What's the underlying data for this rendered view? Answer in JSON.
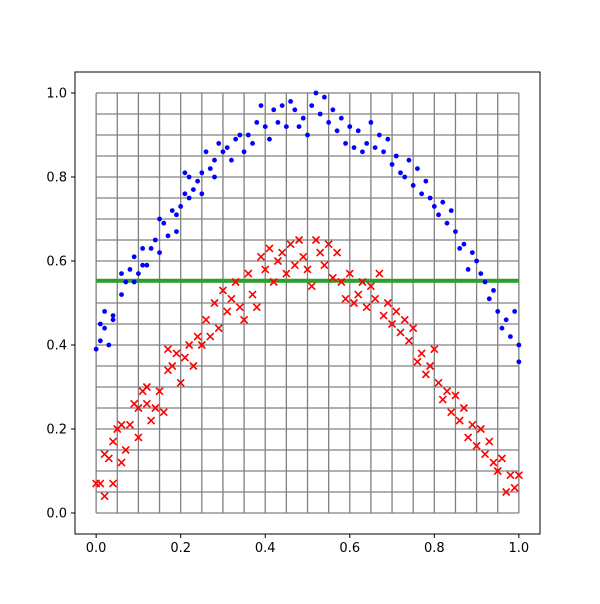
{
  "chart_data": {
    "type": "scatter",
    "title": "",
    "xlabel": "",
    "ylabel": "",
    "xlim": [
      -0.05,
      1.05
    ],
    "ylim": [
      -0.05,
      1.05
    ],
    "x_ticks": [
      0.0,
      0.2,
      0.4,
      0.6,
      0.8,
      1.0
    ],
    "x_tick_labels": [
      "0.0",
      "0.2",
      "0.4",
      "0.6",
      "0.8",
      "1.0"
    ],
    "y_ticks": [
      0.0,
      0.2,
      0.4,
      0.6,
      0.8,
      1.0
    ],
    "y_tick_labels": [
      "0.0",
      "0.2",
      "0.4",
      "0.6",
      "0.8",
      "1.0"
    ],
    "grid": {
      "on": true,
      "range": [
        0,
        1
      ],
      "step": 0.05,
      "color": "#808080"
    },
    "horizontal_line": {
      "y": 0.553,
      "color": "#2ca02c"
    },
    "colors": {
      "series_blue": "#0000ff",
      "series_red": "#ff0000"
    },
    "series": [
      {
        "marker": "dot",
        "color": "#0000ff",
        "points": [
          [
            0.0,
            0.39
          ],
          [
            0.01,
            0.45
          ],
          [
            0.01,
            0.41
          ],
          [
            0.02,
            0.44
          ],
          [
            0.02,
            0.48
          ],
          [
            0.03,
            0.4
          ],
          [
            0.04,
            0.46
          ],
          [
            0.04,
            0.47
          ],
          [
            0.06,
            0.52
          ],
          [
            0.06,
            0.57
          ],
          [
            0.07,
            0.55
          ],
          [
            0.08,
            0.58
          ],
          [
            0.09,
            0.55
          ],
          [
            0.09,
            0.61
          ],
          [
            0.1,
            0.57
          ],
          [
            0.11,
            0.63
          ],
          [
            0.11,
            0.59
          ],
          [
            0.12,
            0.59
          ],
          [
            0.13,
            0.63
          ],
          [
            0.14,
            0.65
          ],
          [
            0.15,
            0.62
          ],
          [
            0.15,
            0.7
          ],
          [
            0.16,
            0.69
          ],
          [
            0.17,
            0.66
          ],
          [
            0.18,
            0.72
          ],
          [
            0.19,
            0.67
          ],
          [
            0.19,
            0.71
          ],
          [
            0.2,
            0.73
          ],
          [
            0.21,
            0.76
          ],
          [
            0.21,
            0.81
          ],
          [
            0.22,
            0.8
          ],
          [
            0.22,
            0.75
          ],
          [
            0.23,
            0.77
          ],
          [
            0.24,
            0.79
          ],
          [
            0.25,
            0.76
          ],
          [
            0.25,
            0.81
          ],
          [
            0.26,
            0.86
          ],
          [
            0.27,
            0.82
          ],
          [
            0.28,
            0.84
          ],
          [
            0.28,
            0.8
          ],
          [
            0.29,
            0.88
          ],
          [
            0.3,
            0.86
          ],
          [
            0.31,
            0.87
          ],
          [
            0.32,
            0.84
          ],
          [
            0.33,
            0.89
          ],
          [
            0.34,
            0.9
          ],
          [
            0.35,
            0.86
          ],
          [
            0.36,
            0.9
          ],
          [
            0.37,
            0.88
          ],
          [
            0.38,
            0.93
          ],
          [
            0.39,
            0.97
          ],
          [
            0.4,
            0.92
          ],
          [
            0.41,
            0.89
          ],
          [
            0.42,
            0.96
          ],
          [
            0.43,
            0.93
          ],
          [
            0.44,
            0.97
          ],
          [
            0.45,
            0.92
          ],
          [
            0.46,
            0.98
          ],
          [
            0.47,
            0.96
          ],
          [
            0.48,
            0.92
          ],
          [
            0.49,
            0.94
          ],
          [
            0.5,
            0.9
          ],
          [
            0.51,
            0.97
          ],
          [
            0.52,
            1.0
          ],
          [
            0.53,
            0.95
          ],
          [
            0.54,
            0.99
          ],
          [
            0.55,
            0.93
          ],
          [
            0.56,
            0.96
          ],
          [
            0.57,
            0.91
          ],
          [
            0.58,
            0.94
          ],
          [
            0.59,
            0.88
          ],
          [
            0.6,
            0.92
          ],
          [
            0.61,
            0.87
          ],
          [
            0.62,
            0.91
          ],
          [
            0.63,
            0.86
          ],
          [
            0.64,
            0.88
          ],
          [
            0.65,
            0.93
          ],
          [
            0.66,
            0.87
          ],
          [
            0.67,
            0.9
          ],
          [
            0.68,
            0.86
          ],
          [
            0.69,
            0.89
          ],
          [
            0.7,
            0.83
          ],
          [
            0.71,
            0.85
          ],
          [
            0.72,
            0.81
          ],
          [
            0.73,
            0.8
          ],
          [
            0.74,
            0.84
          ],
          [
            0.75,
            0.78
          ],
          [
            0.76,
            0.82
          ],
          [
            0.77,
            0.76
          ],
          [
            0.78,
            0.79
          ],
          [
            0.79,
            0.75
          ],
          [
            0.8,
            0.73
          ],
          [
            0.81,
            0.71
          ],
          [
            0.82,
            0.74
          ],
          [
            0.83,
            0.69
          ],
          [
            0.84,
            0.72
          ],
          [
            0.85,
            0.67
          ],
          [
            0.86,
            0.63
          ],
          [
            0.87,
            0.64
          ],
          [
            0.88,
            0.58
          ],
          [
            0.89,
            0.62
          ],
          [
            0.9,
            0.6
          ],
          [
            0.91,
            0.57
          ],
          [
            0.92,
            0.55
          ],
          [
            0.93,
            0.51
          ],
          [
            0.94,
            0.53
          ],
          [
            0.95,
            0.48
          ],
          [
            0.96,
            0.44
          ],
          [
            0.97,
            0.46
          ],
          [
            0.98,
            0.42
          ],
          [
            0.99,
            0.48
          ],
          [
            1.0,
            0.4
          ],
          [
            1.0,
            0.36
          ]
        ]
      },
      {
        "marker": "x",
        "color": "#ff0000",
        "points": [
          [
            0.0,
            0.07
          ],
          [
            0.01,
            0.07
          ],
          [
            0.02,
            0.04
          ],
          [
            0.02,
            0.14
          ],
          [
            0.03,
            0.13
          ],
          [
            0.04,
            0.07
          ],
          [
            0.04,
            0.17
          ],
          [
            0.05,
            0.2
          ],
          [
            0.06,
            0.12
          ],
          [
            0.06,
            0.21
          ],
          [
            0.07,
            0.15
          ],
          [
            0.08,
            0.21
          ],
          [
            0.09,
            0.26
          ],
          [
            0.1,
            0.18
          ],
          [
            0.1,
            0.25
          ],
          [
            0.11,
            0.29
          ],
          [
            0.12,
            0.3
          ],
          [
            0.12,
            0.26
          ],
          [
            0.13,
            0.22
          ],
          [
            0.14,
            0.25
          ],
          [
            0.15,
            0.29
          ],
          [
            0.16,
            0.24
          ],
          [
            0.17,
            0.34
          ],
          [
            0.17,
            0.39
          ],
          [
            0.18,
            0.35
          ],
          [
            0.19,
            0.38
          ],
          [
            0.2,
            0.31
          ],
          [
            0.21,
            0.37
          ],
          [
            0.22,
            0.4
          ],
          [
            0.23,
            0.35
          ],
          [
            0.24,
            0.42
          ],
          [
            0.25,
            0.4
          ],
          [
            0.26,
            0.46
          ],
          [
            0.27,
            0.42
          ],
          [
            0.28,
            0.5
          ],
          [
            0.29,
            0.44
          ],
          [
            0.3,
            0.53
          ],
          [
            0.31,
            0.48
          ],
          [
            0.32,
            0.51
          ],
          [
            0.33,
            0.55
          ],
          [
            0.34,
            0.49
          ],
          [
            0.35,
            0.46
          ],
          [
            0.36,
            0.57
          ],
          [
            0.37,
            0.52
          ],
          [
            0.38,
            0.49
          ],
          [
            0.39,
            0.61
          ],
          [
            0.4,
            0.58
          ],
          [
            0.41,
            0.63
          ],
          [
            0.42,
            0.55
          ],
          [
            0.43,
            0.6
          ],
          [
            0.44,
            0.62
          ],
          [
            0.45,
            0.57
          ],
          [
            0.46,
            0.64
          ],
          [
            0.47,
            0.59
          ],
          [
            0.48,
            0.65
          ],
          [
            0.49,
            0.61
          ],
          [
            0.5,
            0.58
          ],
          [
            0.51,
            0.54
          ],
          [
            0.52,
            0.65
          ],
          [
            0.53,
            0.62
          ],
          [
            0.54,
            0.59
          ],
          [
            0.55,
            0.64
          ],
          [
            0.56,
            0.56
          ],
          [
            0.57,
            0.62
          ],
          [
            0.58,
            0.55
          ],
          [
            0.59,
            0.51
          ],
          [
            0.6,
            0.57
          ],
          [
            0.61,
            0.5
          ],
          [
            0.62,
            0.52
          ],
          [
            0.63,
            0.55
          ],
          [
            0.64,
            0.49
          ],
          [
            0.65,
            0.54
          ],
          [
            0.66,
            0.51
          ],
          [
            0.67,
            0.57
          ],
          [
            0.68,
            0.47
          ],
          [
            0.69,
            0.5
          ],
          [
            0.7,
            0.45
          ],
          [
            0.71,
            0.48
          ],
          [
            0.72,
            0.43
          ],
          [
            0.73,
            0.46
          ],
          [
            0.74,
            0.41
          ],
          [
            0.75,
            0.44
          ],
          [
            0.76,
            0.36
          ],
          [
            0.77,
            0.38
          ],
          [
            0.78,
            0.33
          ],
          [
            0.79,
            0.35
          ],
          [
            0.8,
            0.39
          ],
          [
            0.81,
            0.31
          ],
          [
            0.82,
            0.27
          ],
          [
            0.83,
            0.29
          ],
          [
            0.84,
            0.24
          ],
          [
            0.85,
            0.28
          ],
          [
            0.86,
            0.22
          ],
          [
            0.87,
            0.25
          ],
          [
            0.88,
            0.18
          ],
          [
            0.89,
            0.21
          ],
          [
            0.9,
            0.16
          ],
          [
            0.91,
            0.2
          ],
          [
            0.92,
            0.14
          ],
          [
            0.93,
            0.17
          ],
          [
            0.94,
            0.12
          ],
          [
            0.95,
            0.1
          ],
          [
            0.96,
            0.13
          ],
          [
            0.97,
            0.05
          ],
          [
            0.98,
            0.09
          ],
          [
            0.99,
            0.06
          ],
          [
            1.0,
            0.09
          ]
        ]
      }
    ]
  }
}
